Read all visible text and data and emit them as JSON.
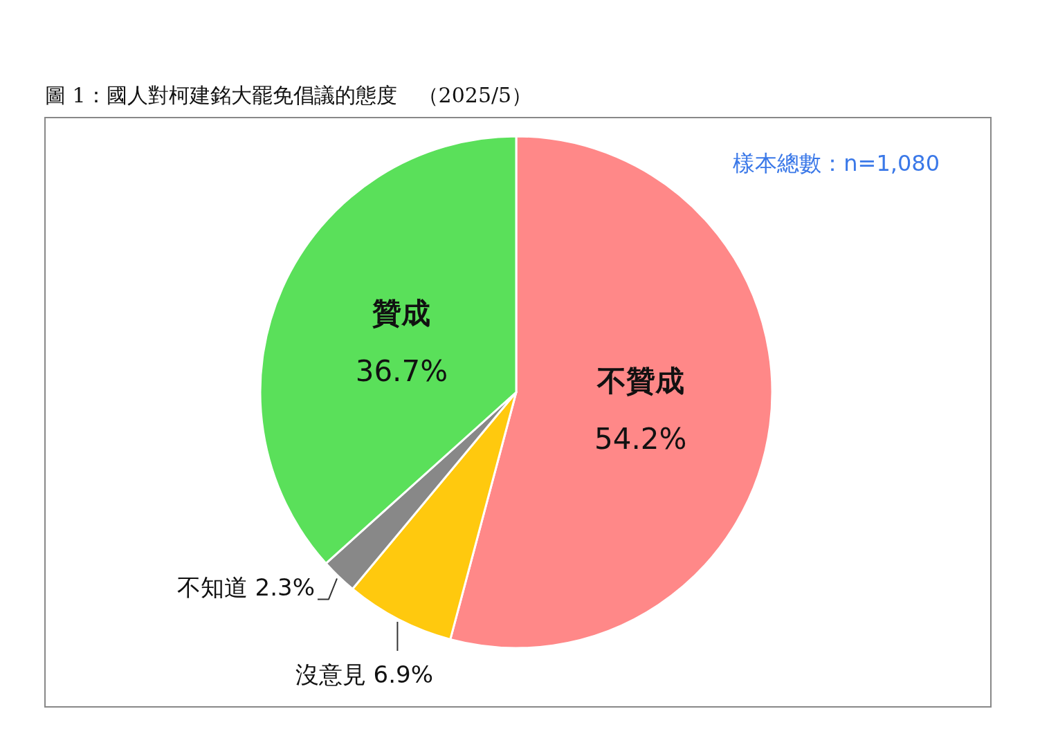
{
  "chart_data": {
    "type": "pie",
    "title": "圖 1：國人對柯建銘大罷免倡議的態度　（2025/5）",
    "categories": [
      "不贊成",
      "沒意見",
      "不知道",
      "贊成"
    ],
    "values": [
      54.2,
      6.9,
      2.3,
      36.7
    ],
    "colors": [
      "#ff8888",
      "#ffc90e",
      "#888888",
      "#5ae05a"
    ],
    "value_labels": [
      "54.2%",
      "6.9%",
      "2.3%",
      "36.7%"
    ],
    "annotations": [
      "樣本總數：n=1,080"
    ]
  }
}
